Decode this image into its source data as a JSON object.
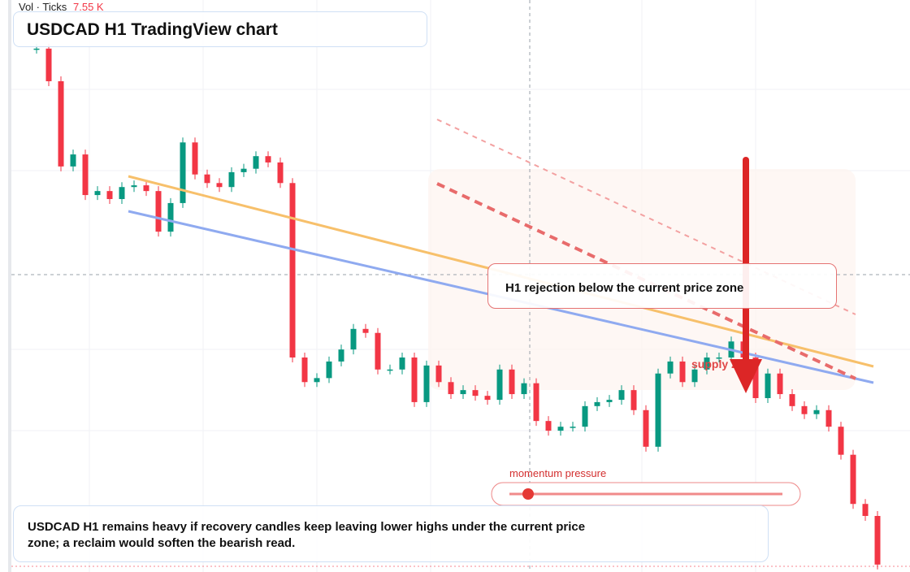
{
  "header": {
    "indicator": "Vol · Ticks",
    "indicator_value": "7.55 K",
    "title": "USDCAD H1 TradingView chart"
  },
  "annotation": "H1 rejection below the current price zone",
  "zone_label": "supply zone",
  "slider_label": "momentum pressure",
  "caption": "USDCAD H1 remains heavy if recovery candles keep leaving lower highs under the current price zone; a reclaim would soften the bearish read.",
  "chart_data": {
    "type": "candlestick",
    "values": [
      91.5,
      85.8,
      70.9,
      73.0,
      65.9,
      66.6,
      65.2,
      67.3,
      67.6,
      66.6,
      59.5,
      64.5,
      75.1,
      69.5,
      68.0,
      67.3,
      69.9,
      70.5,
      72.7,
      71.6,
      68.0,
      37.5,
      33.2,
      33.9,
      36.8,
      38.9,
      42.5,
      41.8,
      35.4,
      35.4,
      37.5,
      29.7,
      36.1,
      33.2,
      31.1,
      31.8,
      30.8,
      30.1,
      35.4,
      31.1,
      33.0,
      26.4,
      24.7,
      25.4,
      25.4,
      29.0,
      29.7,
      30.1,
      31.8,
      28.3,
      21.9,
      34.7,
      36.8,
      33.2,
      35.4,
      37.5,
      37.5,
      40.3,
      37.5,
      30.4,
      34.7,
      31.1,
      29.0,
      27.6,
      28.3,
      25.4,
      20.5,
      11.9,
      9.8,
      1.3
    ],
    "ylim": [
      0,
      100
    ],
    "up_color": "#089981",
    "down_color": "#f23645"
  }
}
